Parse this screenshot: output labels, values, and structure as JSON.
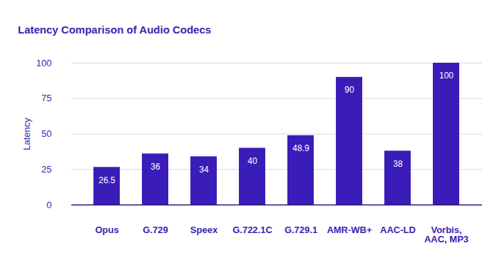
{
  "chart_data": {
    "type": "bar",
    "title": "Latency Comparison of Audio Codecs",
    "y_label": "Latency",
    "categories": [
      "Opus",
      "G.729",
      "Speex",
      "G.722.1C",
      "G.729.1",
      "AMR-WB+",
      "AAC-LD",
      "Vorbis, AAC, MP3"
    ],
    "values": [
      26.5,
      36,
      34,
      40,
      48.9,
      90,
      38,
      100
    ],
    "color": "#3a1db8",
    "ylim": [
      0,
      100
    ],
    "yticks": [
      0,
      25,
      50,
      75,
      100
    ],
    "grid": true,
    "data_labels": true
  }
}
